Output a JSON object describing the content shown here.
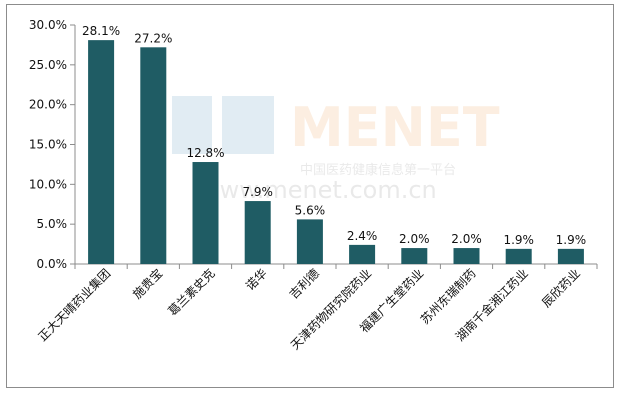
{
  "watermark": {
    "brand": "MENET",
    "tagline": "中国医药健康信息第一平台",
    "url": "www.menet.com.cn"
  },
  "chart_data": {
    "type": "bar",
    "title": "",
    "xlabel": "",
    "ylabel": "",
    "ylim": [
      0,
      30
    ],
    "yticks": [
      "0.0%",
      "5.0%",
      "10.0%",
      "15.0%",
      "20.0%",
      "25.0%",
      "30.0%"
    ],
    "grid": false,
    "bar_color": "#1f5c64",
    "categories": [
      "正大天晴药业集团",
      "施贵宝",
      "葛兰素史克",
      "诺华",
      "吉利德",
      "天津药物研究院药业",
      "福建广生堂药业",
      "苏州东瑞制药",
      "湖南千金湘江药业",
      "辰欣药业"
    ],
    "values": [
      28.1,
      27.2,
      12.8,
      7.9,
      5.6,
      2.4,
      2.0,
      2.0,
      1.9,
      1.9
    ],
    "value_labels": [
      "28.1%",
      "27.2%",
      "12.8%",
      "7.9%",
      "5.6%",
      "2.4%",
      "2.0%",
      "2.0%",
      "1.9%",
      "1.9%"
    ]
  }
}
